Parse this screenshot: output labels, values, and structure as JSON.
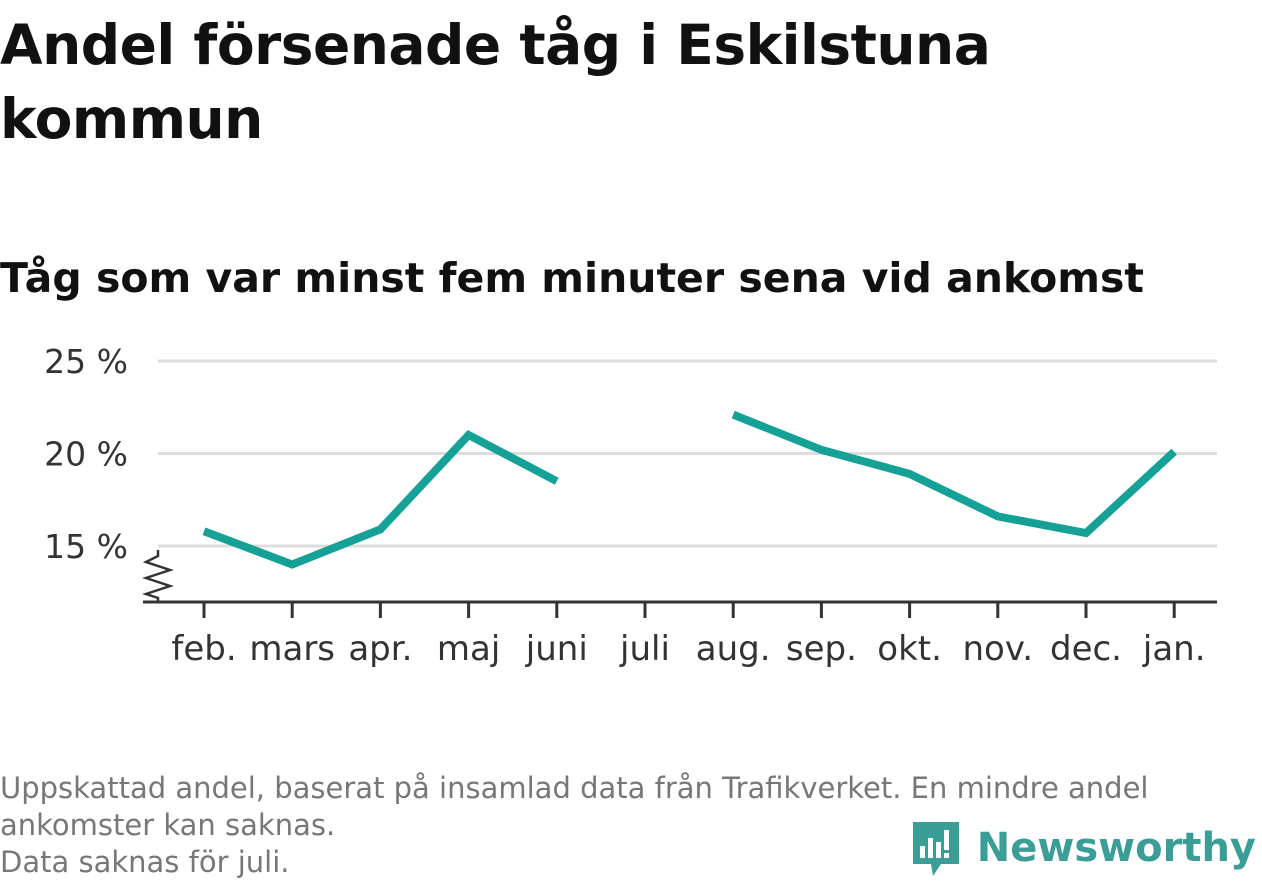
{
  "title": "Andel försenade tåg i Eskilstuna kommun",
  "subtitle": "Tåg som var minst fem minuter sena vid ankomst",
  "notes": [
    "Uppskattad andel, baserat på insamlad data från Trafikverket. En mindre andel",
    "ankomster kan saknas.",
    "Data saknas för juli."
  ],
  "brand": {
    "name": "Newsworthy",
    "icon": "newsworthy-logo-icon",
    "color": "#3a9e96"
  },
  "chart_data": {
    "type": "line",
    "categories": [
      "feb.",
      "mars",
      "apr.",
      "maj",
      "juni",
      "juli",
      "aug.",
      "sep.",
      "okt.",
      "nov.",
      "dec.",
      "jan."
    ],
    "series": [
      {
        "values": [
          15.8,
          14.0,
          15.9,
          21.0,
          18.5,
          null,
          22.1,
          20.2,
          18.9,
          16.6,
          15.7,
          20.1
        ]
      }
    ],
    "ylim": [
      12,
      25
    ],
    "yticks": [
      15,
      20,
      25
    ],
    "ytick_labels": [
      "15 %",
      "20 %",
      "25 %"
    ],
    "axis_break": "y",
    "grid": true,
    "line_color": "#15a196",
    "grid_color": "#dddddd",
    "axis_color": "#333333"
  }
}
